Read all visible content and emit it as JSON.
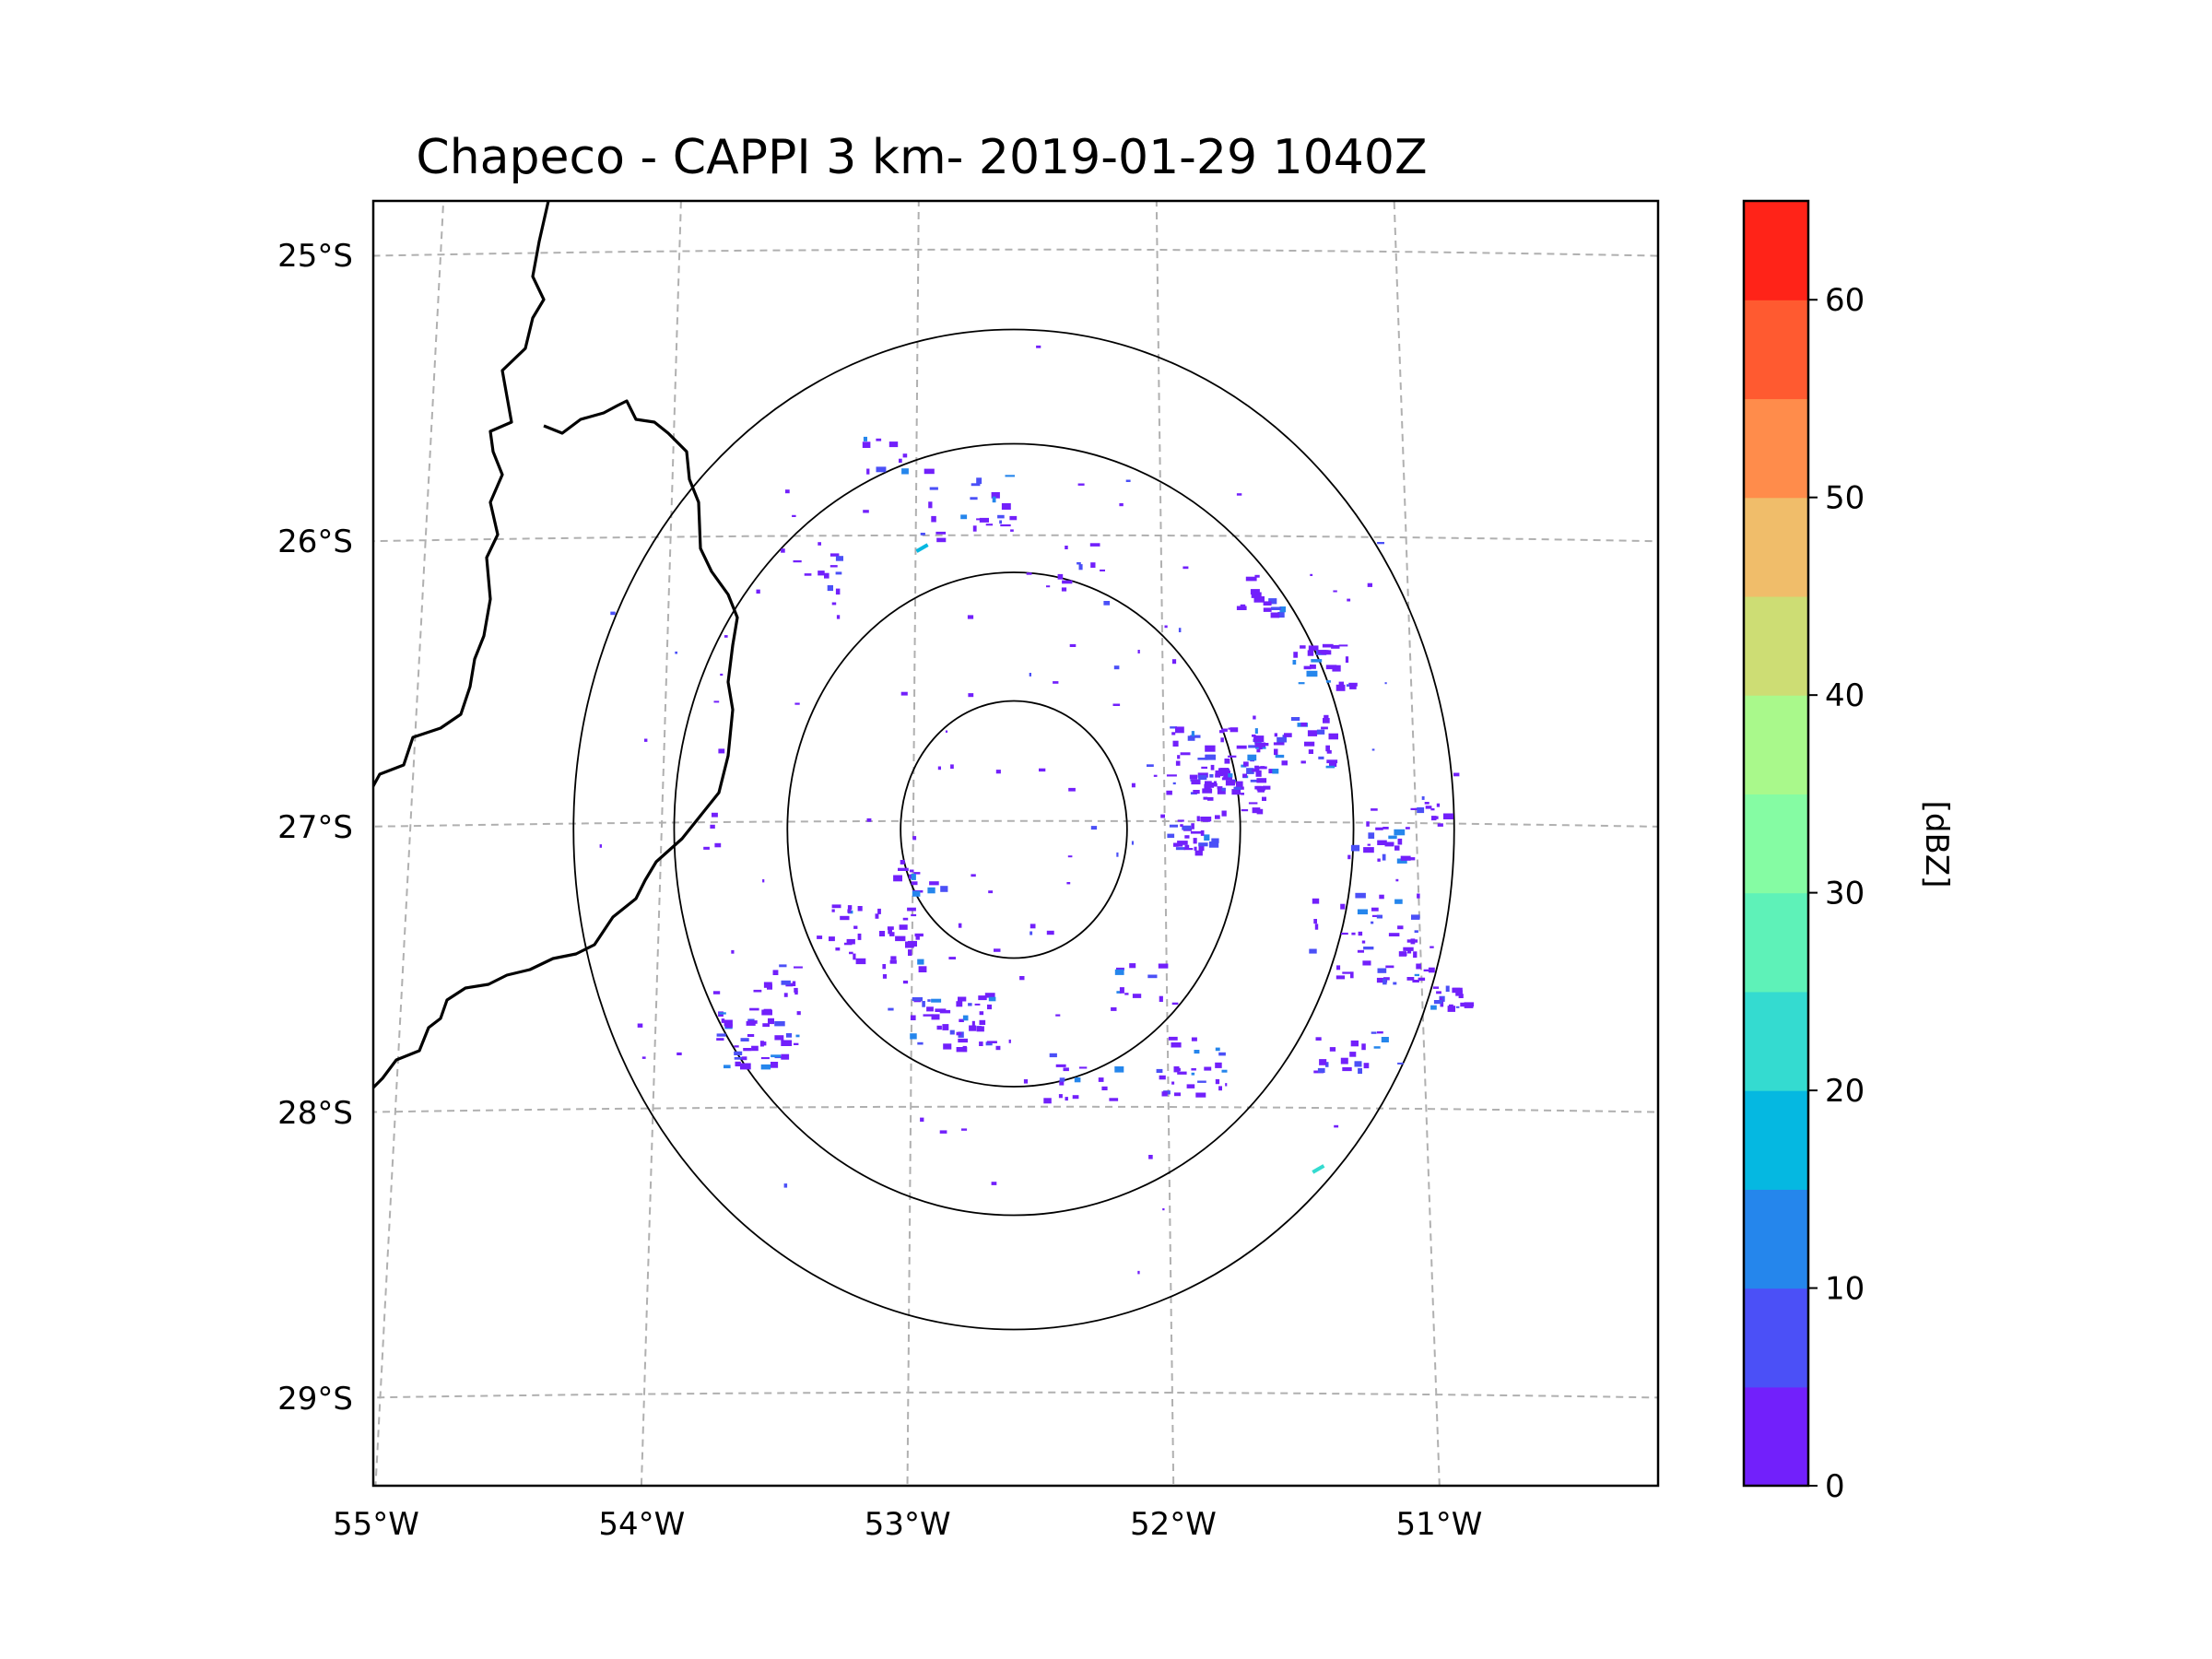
{
  "chart_data": {
    "type": "radar_ppi_map",
    "title": "Chapeco - CAPPI 3 km- 2019-01-29 1040Z",
    "radar_site": "Chapeco",
    "product": "CAPPI 3 km",
    "timestamp": "2019-01-29 1040Z",
    "extent": {
      "lon_min": -55.2,
      "lon_max": -50.05,
      "lat_min": -29.28,
      "lat_max": -24.78
    },
    "radar_center": {
      "lon": -52.6,
      "lat": -27.03
    },
    "range_rings_deg": [
      0.45,
      0.9,
      1.35,
      1.75
    ],
    "gridlines": {
      "lon_labels": [
        "55°W",
        "54°W",
        "53°W",
        "52°W",
        "51°W"
      ],
      "lat_labels": [
        "25°S",
        "26°S",
        "27°S",
        "28°S",
        "29°S"
      ]
    },
    "colorbar": {
      "label": "[dBZ]",
      "min": 0,
      "max": 65,
      "step": 5,
      "tick_labels": [
        "0",
        "10",
        "20",
        "30",
        "40",
        "50",
        "60"
      ],
      "colors": [
        "#7220fb",
        "#4b50f7",
        "#2586ec",
        "#05b8e1",
        "#34dbd0",
        "#5ef2b8",
        "#85fca3",
        "#a9f98b",
        "#cddd74",
        "#f0bd6a",
        "#ff8c4b",
        "#ff5a30",
        "#ff2318"
      ]
    },
    "echoes_dbz_range": [
      0,
      25
    ],
    "echo_regions": [
      {
        "lon": -51.8,
        "lat": -26.78,
        "dbz": 8
      },
      {
        "lon": -51.5,
        "lat": -26.7,
        "dbz": 8
      },
      {
        "lon": -51.9,
        "lat": -27.05,
        "dbz": 10
      },
      {
        "lon": -51.75,
        "lat": -26.9,
        "dbz": 7
      },
      {
        "lon": -50.9,
        "lat": -27.6,
        "dbz": 8
      },
      {
        "lon": -53.6,
        "lat": -27.75,
        "dbz": 6
      },
      {
        "lon": -51.4,
        "lat": -26.36,
        "dbz": 10
      },
      {
        "lon": -51.6,
        "lat": -26.18,
        "dbz": 8
      },
      {
        "lon": -53.0,
        "lat": -26.05,
        "dbz": 18
      },
      {
        "lon": -51.45,
        "lat": -28.22,
        "dbz": 22
      }
    ],
    "border_lines": [
      "country border (Paraguay/Argentina/Brazil)",
      "Misiones province outline"
    ]
  }
}
